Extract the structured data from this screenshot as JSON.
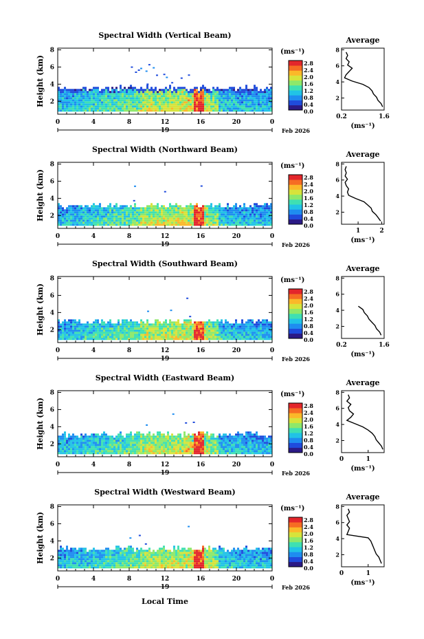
{
  "figure": {
    "xlabel": "Local Time",
    "date_label": "Feb 2026",
    "colorbar_unit": "(ms⁻¹)",
    "profile_title": "Average",
    "profile_xlabel": "(ms⁻¹)",
    "colormap": [
      "#2b1a86",
      "#1f4bdc",
      "#1e8df0",
      "#21c3e6",
      "#3fe0b2",
      "#8ee86a",
      "#d7e33b",
      "#fbb829",
      "#f66c23",
      "#e3262b"
    ]
  },
  "chart_data": [
    {
      "type": "heatmap",
      "title": "Spectral Width (Vertical Beam)",
      "ylabel": "Height (km)",
      "x_ticks": [
        "0",
        "4",
        "8",
        "12",
        "16",
        "20",
        "0"
      ],
      "x_day": "19",
      "y_ticks": [
        "2",
        "4",
        "6",
        "8"
      ],
      "ylim": [
        0.5,
        8.2
      ],
      "xlim": [
        0,
        24
      ],
      "colorbar_ticks": [
        "2.8",
        "2.4",
        "2.0",
        "1.6",
        "1.2",
        "0.8",
        "0.4",
        "0.0"
      ],
      "colorbar_range": [
        0.0,
        2.8
      ],
      "echo_top_km": 3.4,
      "profile": {
        "x_ticks": [
          "0.2",
          "1.6"
        ],
        "xlim": [
          0.2,
          1.6
        ],
        "heights": [
          0.9,
          1.3,
          1.7,
          2.1,
          2.5,
          2.9,
          3.3,
          3.7,
          4.1,
          4.5,
          4.9,
          5.3,
          5.7,
          6.1,
          6.5,
          6.9,
          7.3,
          7.7
        ],
        "values": [
          1.55,
          1.5,
          1.4,
          1.35,
          1.25,
          1.2,
          1.1,
          0.9,
          0.55,
          0.3,
          0.35,
          0.45,
          0.55,
          0.4,
          0.45,
          0.35,
          0.4,
          0.35
        ]
      }
    },
    {
      "type": "heatmap",
      "title": "Spectral Width (Northward Beam)",
      "ylabel": "Height (km)",
      "x_ticks": [
        "0",
        "4",
        "8",
        "12",
        "16",
        "20",
        "0"
      ],
      "x_day": "19",
      "y_ticks": [
        "2",
        "4",
        "6",
        "8"
      ],
      "ylim": [
        0.5,
        8.2
      ],
      "xlim": [
        0,
        24
      ],
      "colorbar_ticks": [
        "2.8",
        "2.4",
        "2.0",
        "1.6",
        "1.2",
        "0.8",
        "0.4",
        "0.0"
      ],
      "colorbar_range": [
        0.0,
        2.8
      ],
      "echo_top_km": 3.0,
      "profile": {
        "x_ticks": [
          "1",
          "2"
        ],
        "xlim": [
          0.3,
          2.1
        ],
        "heights": [
          0.9,
          1.3,
          1.7,
          2.1,
          2.5,
          2.9,
          3.3,
          3.7,
          4.1,
          4.5,
          4.9,
          5.3,
          5.7,
          6.1,
          6.5,
          6.9,
          7.3,
          7.7
        ],
        "values": [
          1.95,
          1.85,
          1.75,
          1.6,
          1.55,
          1.4,
          1.25,
          0.9,
          0.6,
          0.55,
          0.6,
          0.5,
          0.45,
          0.55,
          0.45,
          0.5,
          0.45,
          0.5
        ]
      }
    },
    {
      "type": "heatmap",
      "title": "Spectral Width (Southward Beam)",
      "ylabel": "Height (km)",
      "x_ticks": [
        "0",
        "4",
        "8",
        "12",
        "16",
        "20",
        "0"
      ],
      "x_day": "19",
      "y_ticks": [
        "2",
        "4",
        "6",
        "8"
      ],
      "ylim": [
        0.5,
        8.2
      ],
      "xlim": [
        0,
        24
      ],
      "colorbar_ticks": [
        "2.8",
        "2.4",
        "2.0",
        "1.6",
        "1.2",
        "0.8",
        "0.4",
        "0.0"
      ],
      "colorbar_range": [
        0.0,
        2.8
      ],
      "echo_top_km": 2.9,
      "profile": {
        "x_ticks": [
          "0.2",
          "1.6"
        ],
        "xlim": [
          0.2,
          1.6
        ],
        "heights": [
          0.9,
          1.3,
          1.7,
          2.1,
          2.5,
          2.9,
          3.3,
          3.7,
          4.1,
          4.5
        ],
        "values": [
          1.5,
          1.45,
          1.35,
          1.3,
          1.2,
          1.1,
          1.05,
          0.95,
          0.9,
          0.75
        ]
      }
    },
    {
      "type": "heatmap",
      "title": "Spectral Width (Eastward Beam)",
      "ylabel": "Height (km)",
      "x_ticks": [
        "0",
        "4",
        "8",
        "12",
        "16",
        "20",
        "0"
      ],
      "x_day": "19",
      "y_ticks": [
        "2",
        "4",
        "6",
        "8"
      ],
      "ylim": [
        0.5,
        8.2
      ],
      "xlim": [
        0,
        24
      ],
      "colorbar_ticks": [
        "2.8",
        "2.4",
        "2.0",
        "1.6",
        "1.2",
        "0.8",
        "0.4",
        "0.0"
      ],
      "colorbar_range": [
        0.0,
        2.8
      ],
      "echo_top_km": 3.0,
      "profile": {
        "x_ticks": [
          "0",
          "1"
        ],
        "xlim": [
          0.0,
          1.6
        ],
        "heights": [
          0.9,
          1.3,
          1.7,
          2.1,
          2.5,
          2.9,
          3.3,
          3.7,
          4.1,
          4.5,
          4.9,
          5.3,
          5.7,
          6.1,
          6.5,
          6.9,
          7.3,
          7.7
        ],
        "values": [
          1.55,
          1.5,
          1.4,
          1.3,
          1.25,
          1.15,
          1.0,
          0.8,
          0.5,
          0.2,
          0.35,
          0.45,
          0.3,
          0.25,
          0.35,
          0.2,
          0.3,
          0.25
        ]
      }
    },
    {
      "type": "heatmap",
      "title": "Spectral Width (Westward Beam)",
      "ylabel": "Height (km)",
      "x_ticks": [
        "0",
        "4",
        "8",
        "12",
        "16",
        "20",
        "0"
      ],
      "x_day": "19",
      "y_ticks": [
        "2",
        "4",
        "6",
        "8"
      ],
      "ylim": [
        0.5,
        8.2
      ],
      "xlim": [
        0,
        24
      ],
      "colorbar_ticks": [
        "2.8",
        "2.4",
        "2.0",
        "1.6",
        "1.2",
        "0.8",
        "0.4",
        "0.0"
      ],
      "colorbar_range": [
        0.0,
        2.8
      ],
      "echo_top_km": 3.0,
      "profile": {
        "x_ticks": [
          "0",
          "1"
        ],
        "xlim": [
          0.0,
          1.6
        ],
        "heights": [
          0.9,
          1.3,
          1.7,
          2.1,
          2.5,
          2.9,
          3.3,
          3.7,
          4.1,
          4.5,
          4.9,
          5.3,
          5.7,
          6.1,
          6.5,
          6.9,
          7.3,
          7.7
        ],
        "values": [
          1.5,
          1.45,
          1.4,
          1.3,
          1.25,
          1.2,
          1.15,
          1.1,
          1.0,
          0.2,
          0.25,
          0.3,
          0.2,
          0.3,
          0.25,
          0.2,
          0.3,
          0.25
        ]
      }
    }
  ]
}
